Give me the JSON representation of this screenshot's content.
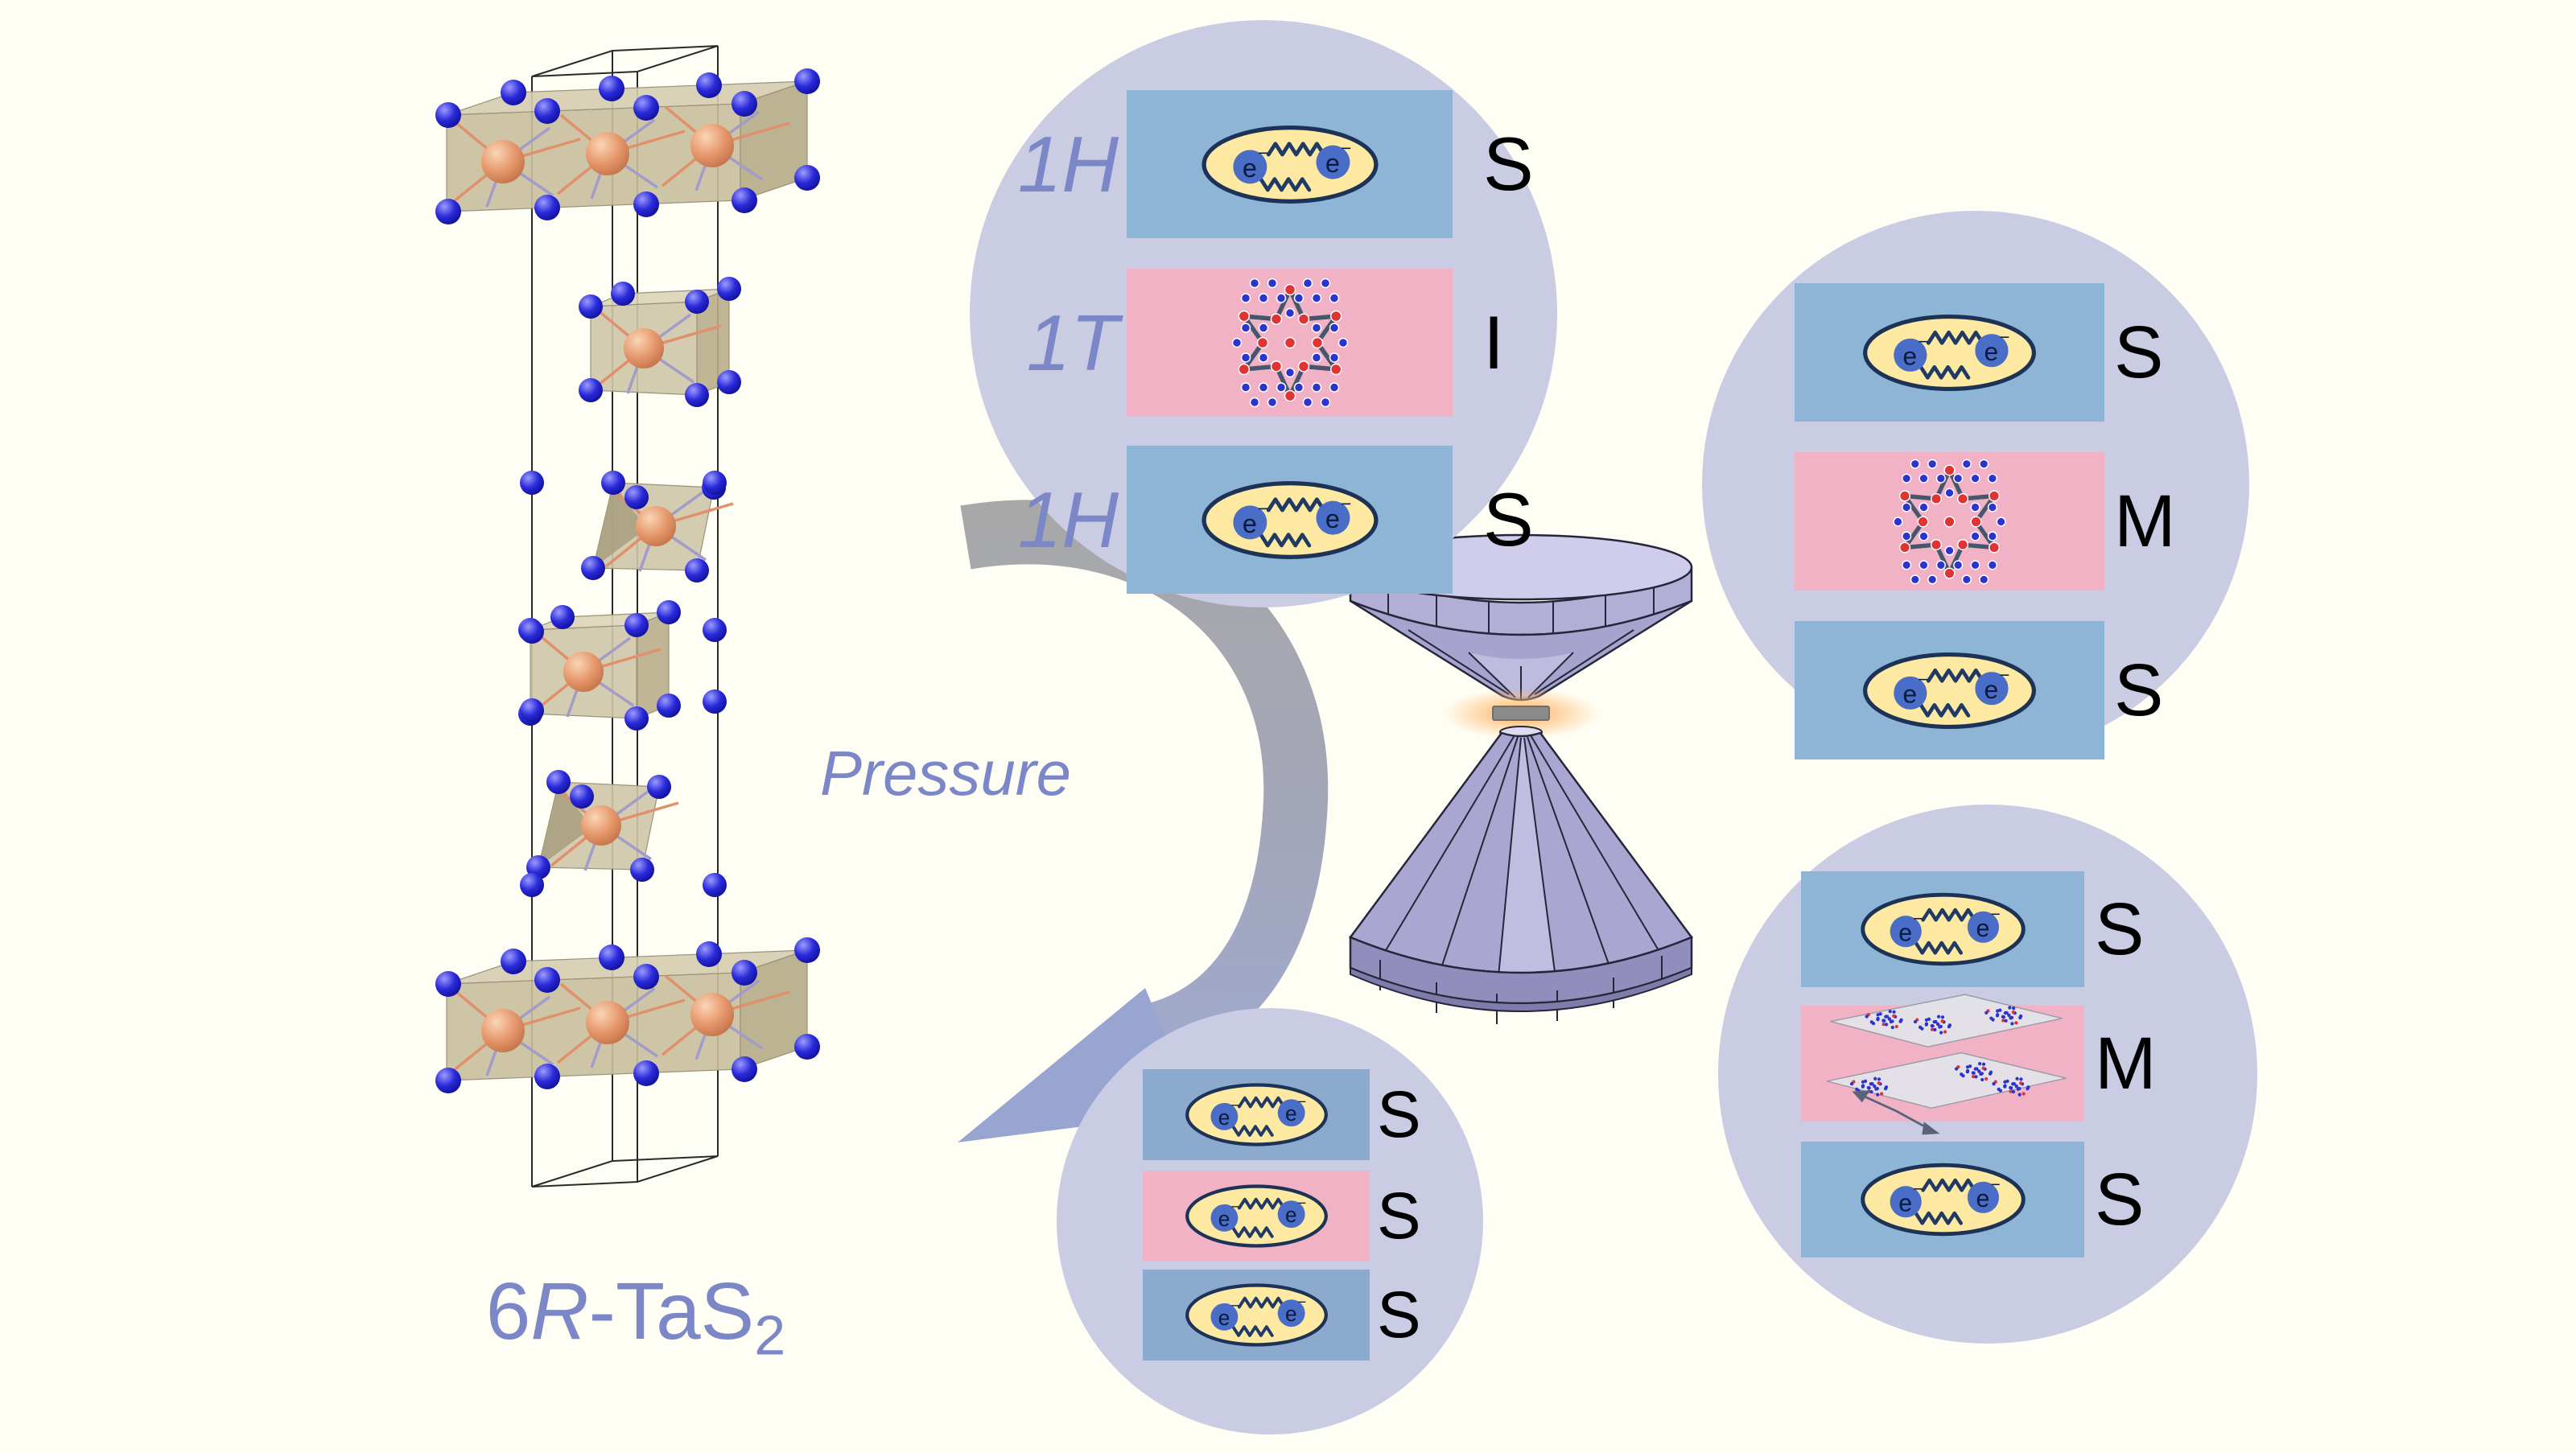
{
  "colors": {
    "bg": "#FFFEF4",
    "accent": "#7B87C6",
    "circle_bg": "#C9CCE2",
    "layer_blue": "#8FB5D6",
    "layer_blue_muted": "#8CA9CE",
    "layer_pink": "#F1B2C6",
    "pair_fill": "#FDE9A2",
    "pair_border": "#1C3256",
    "electron_fill": "#4A6DC8",
    "electron_text": "#0B1B3C",
    "wave": "#203A66",
    "star_red": "#E23333",
    "star_blue": "#2B35CC",
    "star_line": "#46566E",
    "plane_fill": "#E2E2E8",
    "plane_edge": "#9A9AA2",
    "axis_arrow": "#5A6478",
    "state_text": "#000000",
    "arrow_start": "#A8A8A8",
    "arrow_end": "#9FABD6",
    "arrow_head": "#98A5D0",
    "dac_table": "#CFCDEB",
    "dac_band": "#B2AFD6",
    "dac_cone": "#A7A3CF",
    "dac_cone_light": "#C6C3E4",
    "dac_band_low": "#918DBD",
    "dac_base": "#7F7BAB",
    "dac_line": "#26263A",
    "gasket": "#8A8A8A",
    "glow": "#FF9D3D",
    "crystal_slab": "#CFC6A8",
    "box_line": "#2A2A2A"
  },
  "crystal": {
    "label": {
      "prefix": "6",
      "polytype": "R",
      "suffix": "-TaS",
      "subscript": "2"
    }
  },
  "pressure_label": "Pressure",
  "electron": {
    "symbol": "e",
    "charge": "−"
  },
  "phases": {
    "ambient": {
      "polytype_labels": [
        "1H",
        "1T",
        "1H"
      ],
      "states": [
        "S",
        "I",
        "S"
      ]
    },
    "moderate": {
      "states": [
        "S",
        "M",
        "S"
      ]
    },
    "high": {
      "states": [
        "S",
        "M",
        "S"
      ]
    },
    "highest": {
      "states": [
        "S",
        "S",
        "S"
      ]
    }
  }
}
